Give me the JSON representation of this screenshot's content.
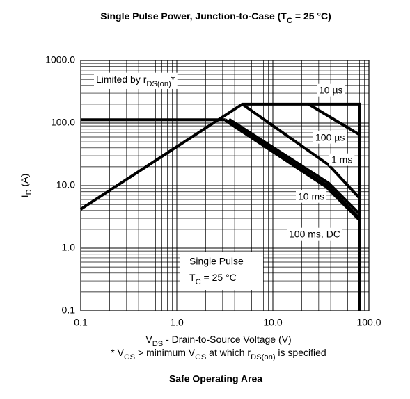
{
  "chart_data": {
    "type": "line",
    "title": [
      "Single Pulse Power, Junction-to-Case (T",
      "C",
      " = 25 °C)"
    ],
    "xlabel": [
      "V",
      "DS",
      " - Drain-to-Source Voltage (V)"
    ],
    "ylabel": [
      "I",
      "D",
      " (A)"
    ],
    "footnote": [
      "* V",
      "GS",
      " > minimum V",
      "GS",
      " at which r",
      "DS(on)",
      " is specified"
    ],
    "caption": "Safe Operating Area",
    "annotations": [
      "Single Pulse",
      [
        "T",
        "C",
        " = 25 °C"
      ]
    ],
    "xscale": "log",
    "yscale": "log",
    "grid": true,
    "xlim": [
      0.1,
      100
    ],
    "ylim": [
      0.1,
      1000
    ],
    "xticks": [
      0.1,
      {
        "value": 1,
        "label": "1.0"
      },
      {
        "value": 10,
        "label": "10.0"
      },
      {
        "value": 100,
        "label": "100.0"
      }
    ],
    "yticks": [
      0.1,
      {
        "value": 1,
        "label": "1.0"
      },
      {
        "value": 10,
        "label": "10.0"
      },
      {
        "value": 100,
        "label": "100.0"
      },
      {
        "value": 1000,
        "label": "1000.0"
      }
    ],
    "series": [
      {
        "name": [
          "Limited by r",
          "DS(on)",
          "*"
        ],
        "color": "#000000",
        "x": [
          0.1,
          4.8,
          null,
          0.1,
          3.2
        ],
        "values": [
          4.2,
          200,
          null,
          113,
          113
        ]
      },
      {
        "name": "10 µs",
        "color": "#000000",
        "x": [
          4.8,
          80,
          80,
          null,
          23.5,
          80
        ],
        "values": [
          200,
          200,
          0.1,
          null,
          200,
          65
        ]
      },
      {
        "name": "100 µs",
        "color": "#000000",
        "x": [
          4.8,
          38,
          80
        ],
        "values": [
          200,
          21.5,
          6.3
        ]
      },
      {
        "name": "1 ms",
        "color": "#000000",
        "x": [
          3.5,
          38,
          80
        ],
        "values": [
          115,
          11,
          3.5
        ]
      },
      {
        "name": "10 ms",
        "color": "#000000",
        "x": [
          3.2,
          37,
          80
        ],
        "values": [
          113,
          10,
          3.0
        ]
      },
      {
        "name": "100 ms, DC",
        "color": "#000000",
        "x": [
          3.2,
          36,
          80
        ],
        "values": [
          110,
          9.5,
          2.8
        ]
      }
    ]
  }
}
